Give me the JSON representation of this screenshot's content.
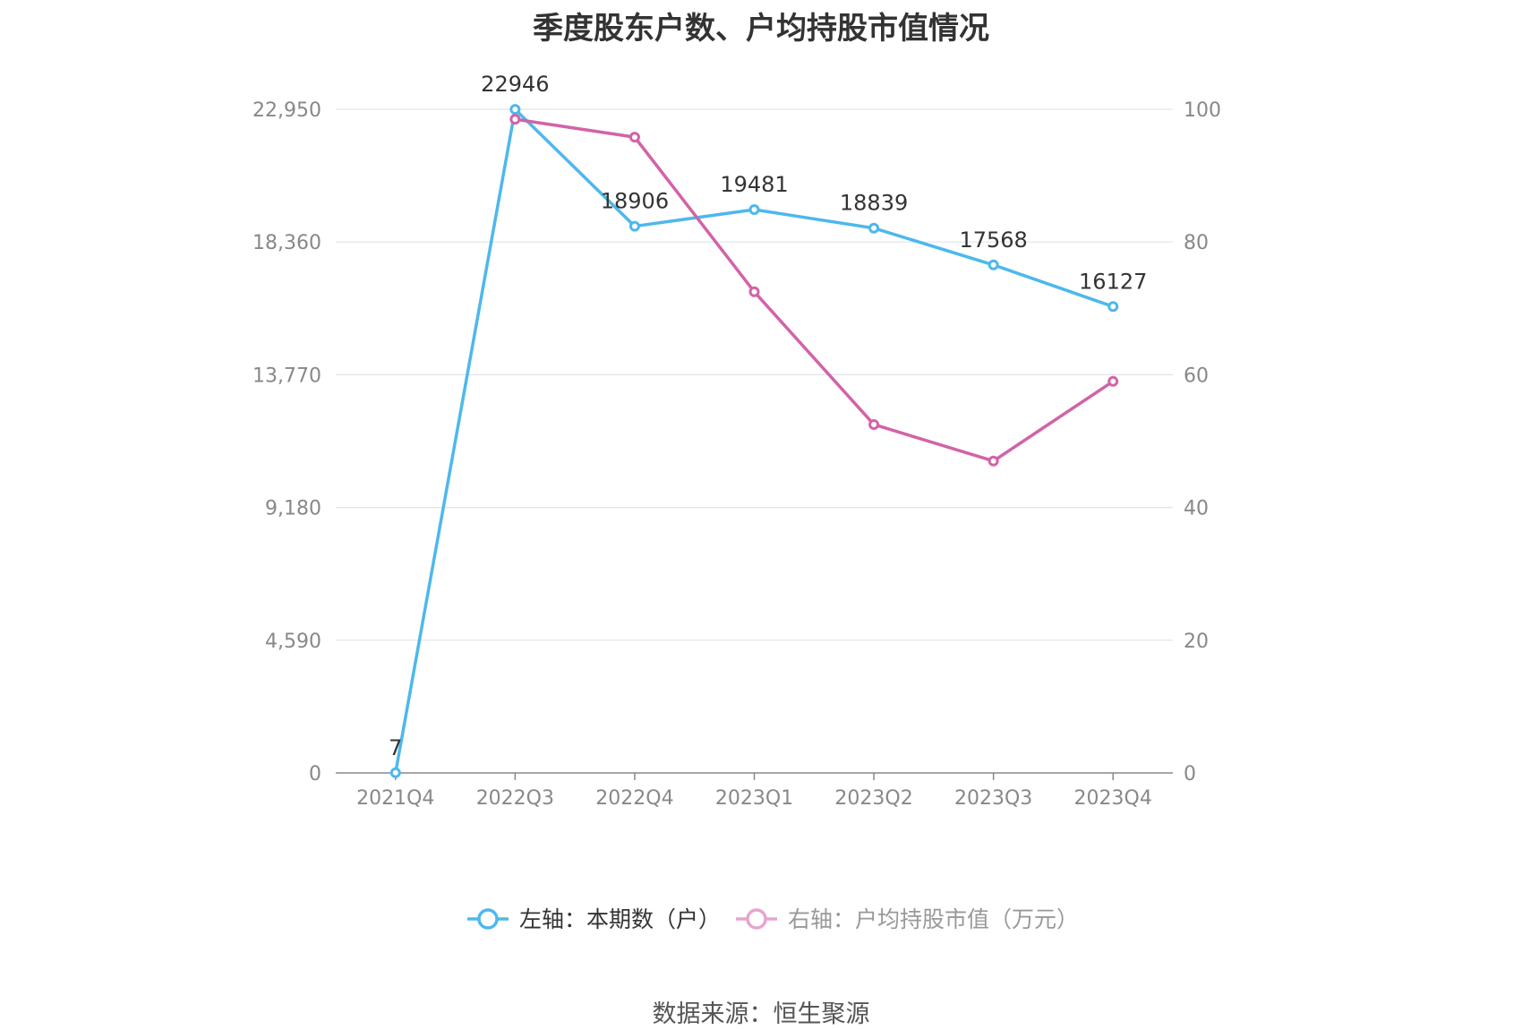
{
  "chart_data": {
    "type": "line",
    "title": "季度股东户数、户均持股市值情况",
    "categories": [
      "2021Q4",
      "2022Q3",
      "2022Q4",
      "2023Q1",
      "2023Q2",
      "2023Q3",
      "2023Q4"
    ],
    "series": [
      {
        "name": "左轴：本期数（户）",
        "axis": "left",
        "color": "#4db8ec",
        "values": [
          7,
          22946,
          18906,
          19481,
          18839,
          17568,
          16127
        ],
        "show_labels": true
      },
      {
        "name": "右轴：户均持股市值（万元）",
        "axis": "right",
        "color": "#d263a8",
        "legend_color": "#e8a4cf",
        "values": [
          null,
          98.5,
          95.8,
          72.5,
          52.5,
          47,
          59
        ]
      }
    ],
    "y_left": {
      "ticks": [
        "0",
        "4,590",
        "9,180",
        "13,770",
        "18,360",
        "22,950"
      ],
      "min": 0,
      "max": 22950
    },
    "y_right": {
      "ticks": [
        "0",
        "20",
        "40",
        "60",
        "80",
        "100"
      ],
      "min": 0,
      "max": 100
    },
    "grid": true,
    "legend": "bottom",
    "source": "数据来源：恒生聚源"
  }
}
